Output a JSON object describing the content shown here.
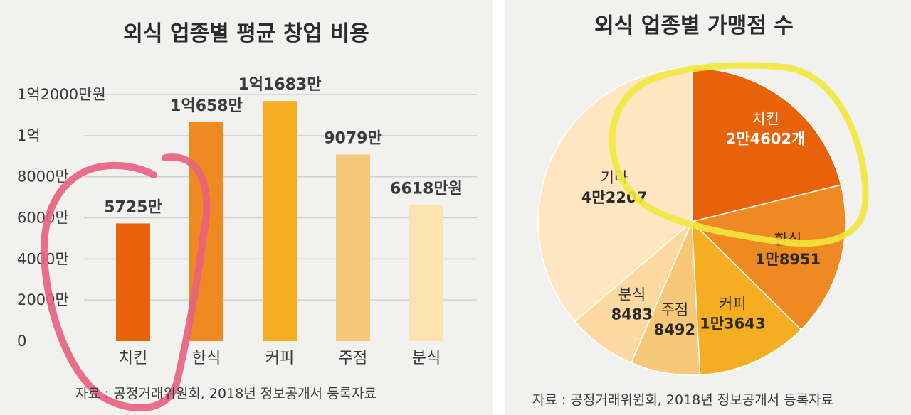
{
  "colors": {
    "background": "#f1f1ef",
    "grid": "#cfcfcf",
    "pink_annotation": "#e85f7e",
    "yellow_annotation": "#f1e83a"
  },
  "left": {
    "source": "자료 : 공정거래위원회, 2018년 정보공개서 등록자료"
  },
  "right": {
    "source": "자료 : 공정거래위원회, 2018년 정보공개서 등록자료"
  },
  "chart_data": [
    {
      "type": "bar",
      "title": "외식 업종별 평균 창업 비용",
      "categories": [
        "치킨",
        "한식",
        "커피",
        "주점",
        "분식"
      ],
      "values": [
        5725,
        10658,
        11683,
        9079,
        6618
      ],
      "value_labels": [
        "5725만",
        "1억658만",
        "1억1683만",
        "9079만",
        "6618만원"
      ],
      "colors": [
        "#e8620a",
        "#ef8a23",
        "#f5ad22",
        "#f8c87a",
        "#fbe2ae"
      ],
      "ylim": [
        0,
        12000
      ],
      "yticks": [
        0,
        2000,
        4000,
        6000,
        8000,
        10000,
        12000
      ],
      "ytick_labels": [
        "0",
        "2000만",
        "4000만",
        "6000만",
        "8000만",
        "1억",
        "1억2000만원"
      ],
      "grid": true
    },
    {
      "type": "pie",
      "title": "외식 업종별 가맹점 수",
      "labels": [
        "치킨",
        "한식",
        "커피",
        "주점",
        "분식",
        "기타"
      ],
      "values": [
        24602,
        18951,
        13643,
        8492,
        8483,
        42207
      ],
      "value_labels": [
        "2만4602개",
        "1만8951",
        "1만3643",
        "8492",
        "8483",
        "4만2207"
      ],
      "colors": [
        "#e8620a",
        "#ef8a23",
        "#f5ad22",
        "#f8c87a",
        "#fbd9a1",
        "#fde6c0"
      ]
    }
  ]
}
